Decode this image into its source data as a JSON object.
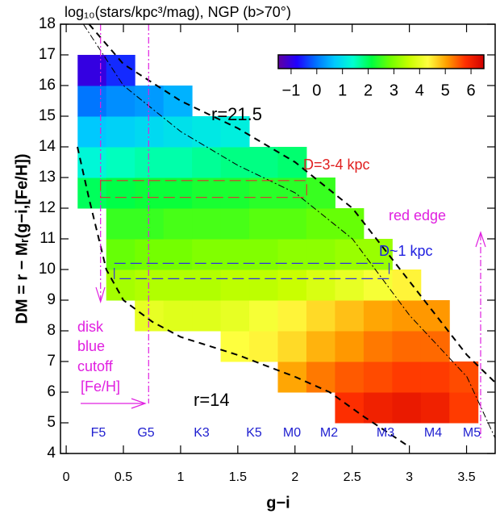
{
  "chart_data": {
    "type": "heatmap",
    "title": "log₁₀(stars/kpc³/mag), NGP (b>70°)",
    "x_label": "g−i",
    "y_label": "DM = r − Mᵣ(g−i,[Fe/H])",
    "xlim": [
      -0.05,
      3.75
    ],
    "ylim": [
      4,
      18
    ],
    "xticks": [
      0,
      0.5,
      1,
      1.5,
      2,
      2.5,
      3,
      3.5
    ],
    "yticks": [
      4,
      5,
      6,
      7,
      8,
      9,
      10,
      11,
      12,
      13,
      14,
      15,
      16,
      17,
      18
    ],
    "x_edges": [
      0.1,
      0.35,
      0.6,
      0.85,
      1.1,
      1.35,
      1.6,
      1.85,
      2.1,
      2.35,
      2.6,
      2.85,
      3.1,
      3.35,
      3.6
    ],
    "y_edges": [
      5,
      6,
      7,
      8,
      9,
      10,
      11,
      12,
      13,
      14,
      15,
      16,
      17
    ],
    "values": [
      [
        null,
        null,
        null,
        null,
        null,
        null,
        null,
        null,
        null,
        5.8,
        6.0,
        6.1,
        6.0,
        5.7
      ],
      [
        null,
        null,
        null,
        null,
        null,
        null,
        null,
        5.0,
        5.3,
        5.5,
        5.6,
        5.7,
        5.7,
        5.6
      ],
      [
        null,
        null,
        null,
        null,
        null,
        4.3,
        4.4,
        4.6,
        4.9,
        5.1,
        5.3,
        5.4,
        5.4,
        null
      ],
      [
        null,
        null,
        4.0,
        3.9,
        3.9,
        4.0,
        4.2,
        4.4,
        4.6,
        4.8,
        5.0,
        5.1,
        5.1,
        null
      ],
      [
        null,
        3.3,
        3.4,
        3.4,
        3.4,
        3.5,
        3.5,
        3.6,
        3.8,
        4.0,
        4.2,
        4.4,
        null,
        null
      ],
      [
        null,
        2.8,
        2.9,
        2.9,
        3.0,
        3.0,
        3.0,
        3.1,
        3.1,
        3.2,
        3.2,
        null,
        null,
        null
      ],
      [
        null,
        2.5,
        2.5,
        2.6,
        2.6,
        2.6,
        2.7,
        2.7,
        2.8,
        2.8,
        null,
        null,
        null,
        null
      ],
      [
        2.0,
        2.1,
        2.2,
        2.2,
        2.3,
        2.3,
        2.4,
        2.4,
        2.5,
        null,
        null,
        null,
        null,
        null
      ],
      [
        1.3,
        1.5,
        1.6,
        1.6,
        1.7,
        1.8,
        1.8,
        1.9,
        null,
        null,
        null,
        null,
        null,
        null
      ],
      [
        0.7,
        0.8,
        0.9,
        1.0,
        1.1,
        1.2,
        null,
        null,
        null,
        null,
        null,
        null,
        null,
        null
      ],
      [
        0.0,
        0.2,
        0.3,
        0.5,
        null,
        null,
        null,
        null,
        null,
        null,
        null,
        null,
        null,
        null
      ],
      [
        -1.0,
        -0.5,
        null,
        null,
        null,
        null,
        null,
        null,
        null,
        null,
        null,
        null,
        null,
        null
      ]
    ],
    "clim": [
      -1.5,
      6.5
    ],
    "colorbar_ticks": [
      {
        "value": -1,
        "label": "−1"
      },
      0,
      1,
      2,
      3,
      4,
      5,
      6
    ],
    "colormap": [
      "#6000a0",
      "#2000ff",
      "#0070ff",
      "#00c8ff",
      "#00ffd0",
      "#00ff40",
      "#70ff00",
      "#c8ff00",
      "#ffff40",
      "#ffa000",
      "#ff3000",
      "#d00000"
    ],
    "annotations": [
      "r=21.5",
      "r=14",
      "D=3-4 kpc",
      "D~1 kpc",
      "red edge",
      "disk",
      "blue",
      "cutoff",
      "[Fe/H]"
    ],
    "spectral_types": [
      "F5",
      "G5",
      "K3",
      "K5",
      "M0",
      "M2",
      "M3",
      "M4",
      "M5"
    ]
  }
}
